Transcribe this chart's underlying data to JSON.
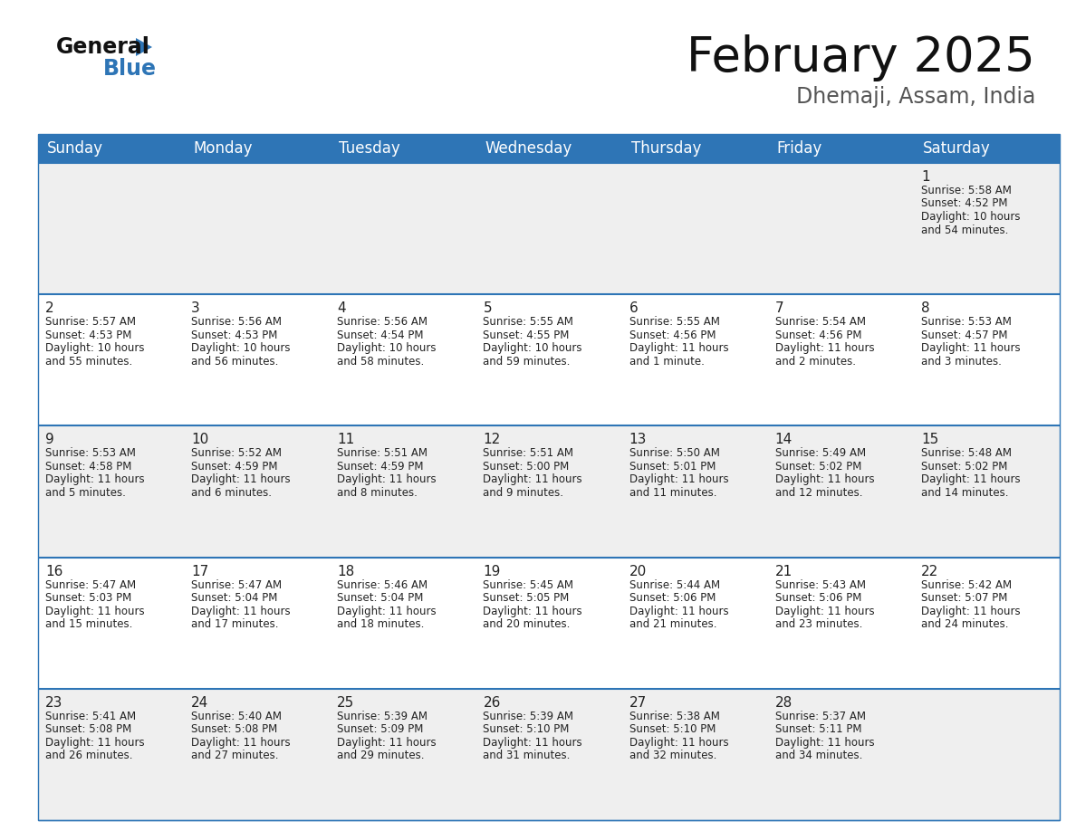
{
  "title": "February 2025",
  "subtitle": "Dhemaji, Assam, India",
  "header_color": "#2E75B6",
  "header_text_color": "#FFFFFF",
  "bg_color": "#FFFFFF",
  "cell_bg_even": "#EFEFEF",
  "cell_bg_odd": "#FFFFFF",
  "separator_color": "#2E75B6",
  "day_names": [
    "Sunday",
    "Monday",
    "Tuesday",
    "Wednesday",
    "Thursday",
    "Friday",
    "Saturday"
  ],
  "title_fontsize": 38,
  "subtitle_fontsize": 17,
  "header_fontsize": 12,
  "day_num_fontsize": 11,
  "cell_fontsize": 8.5,
  "calendar": [
    [
      null,
      null,
      null,
      null,
      null,
      null,
      {
        "day": 1,
        "sunrise": "5:58 AM",
        "sunset": "4:52 PM",
        "daylight_h": "10 hours",
        "daylight_m": "and 54 minutes."
      }
    ],
    [
      {
        "day": 2,
        "sunrise": "5:57 AM",
        "sunset": "4:53 PM",
        "daylight_h": "10 hours",
        "daylight_m": "and 55 minutes."
      },
      {
        "day": 3,
        "sunrise": "5:56 AM",
        "sunset": "4:53 PM",
        "daylight_h": "10 hours",
        "daylight_m": "and 56 minutes."
      },
      {
        "day": 4,
        "sunrise": "5:56 AM",
        "sunset": "4:54 PM",
        "daylight_h": "10 hours",
        "daylight_m": "and 58 minutes."
      },
      {
        "day": 5,
        "sunrise": "5:55 AM",
        "sunset": "4:55 PM",
        "daylight_h": "10 hours",
        "daylight_m": "and 59 minutes."
      },
      {
        "day": 6,
        "sunrise": "5:55 AM",
        "sunset": "4:56 PM",
        "daylight_h": "11 hours",
        "daylight_m": "and 1 minute."
      },
      {
        "day": 7,
        "sunrise": "5:54 AM",
        "sunset": "4:56 PM",
        "daylight_h": "11 hours",
        "daylight_m": "and 2 minutes."
      },
      {
        "day": 8,
        "sunrise": "5:53 AM",
        "sunset": "4:57 PM",
        "daylight_h": "11 hours",
        "daylight_m": "and 3 minutes."
      }
    ],
    [
      {
        "day": 9,
        "sunrise": "5:53 AM",
        "sunset": "4:58 PM",
        "daylight_h": "11 hours",
        "daylight_m": "and 5 minutes."
      },
      {
        "day": 10,
        "sunrise": "5:52 AM",
        "sunset": "4:59 PM",
        "daylight_h": "11 hours",
        "daylight_m": "and 6 minutes."
      },
      {
        "day": 11,
        "sunrise": "5:51 AM",
        "sunset": "4:59 PM",
        "daylight_h": "11 hours",
        "daylight_m": "and 8 minutes."
      },
      {
        "day": 12,
        "sunrise": "5:51 AM",
        "sunset": "5:00 PM",
        "daylight_h": "11 hours",
        "daylight_m": "and 9 minutes."
      },
      {
        "day": 13,
        "sunrise": "5:50 AM",
        "sunset": "5:01 PM",
        "daylight_h": "11 hours",
        "daylight_m": "and 11 minutes."
      },
      {
        "day": 14,
        "sunrise": "5:49 AM",
        "sunset": "5:02 PM",
        "daylight_h": "11 hours",
        "daylight_m": "and 12 minutes."
      },
      {
        "day": 15,
        "sunrise": "5:48 AM",
        "sunset": "5:02 PM",
        "daylight_h": "11 hours",
        "daylight_m": "and 14 minutes."
      }
    ],
    [
      {
        "day": 16,
        "sunrise": "5:47 AM",
        "sunset": "5:03 PM",
        "daylight_h": "11 hours",
        "daylight_m": "and 15 minutes."
      },
      {
        "day": 17,
        "sunrise": "5:47 AM",
        "sunset": "5:04 PM",
        "daylight_h": "11 hours",
        "daylight_m": "and 17 minutes."
      },
      {
        "day": 18,
        "sunrise": "5:46 AM",
        "sunset": "5:04 PM",
        "daylight_h": "11 hours",
        "daylight_m": "and 18 minutes."
      },
      {
        "day": 19,
        "sunrise": "5:45 AM",
        "sunset": "5:05 PM",
        "daylight_h": "11 hours",
        "daylight_m": "and 20 minutes."
      },
      {
        "day": 20,
        "sunrise": "5:44 AM",
        "sunset": "5:06 PM",
        "daylight_h": "11 hours",
        "daylight_m": "and 21 minutes."
      },
      {
        "day": 21,
        "sunrise": "5:43 AM",
        "sunset": "5:06 PM",
        "daylight_h": "11 hours",
        "daylight_m": "and 23 minutes."
      },
      {
        "day": 22,
        "sunrise": "5:42 AM",
        "sunset": "5:07 PM",
        "daylight_h": "11 hours",
        "daylight_m": "and 24 minutes."
      }
    ],
    [
      {
        "day": 23,
        "sunrise": "5:41 AM",
        "sunset": "5:08 PM",
        "daylight_h": "11 hours",
        "daylight_m": "and 26 minutes."
      },
      {
        "day": 24,
        "sunrise": "5:40 AM",
        "sunset": "5:08 PM",
        "daylight_h": "11 hours",
        "daylight_m": "and 27 minutes."
      },
      {
        "day": 25,
        "sunrise": "5:39 AM",
        "sunset": "5:09 PM",
        "daylight_h": "11 hours",
        "daylight_m": "and 29 minutes."
      },
      {
        "day": 26,
        "sunrise": "5:39 AM",
        "sunset": "5:10 PM",
        "daylight_h": "11 hours",
        "daylight_m": "and 31 minutes."
      },
      {
        "day": 27,
        "sunrise": "5:38 AM",
        "sunset": "5:10 PM",
        "daylight_h": "11 hours",
        "daylight_m": "and 32 minutes."
      },
      {
        "day": 28,
        "sunrise": "5:37 AM",
        "sunset": "5:11 PM",
        "daylight_h": "11 hours",
        "daylight_m": "and 34 minutes."
      },
      null
    ]
  ]
}
